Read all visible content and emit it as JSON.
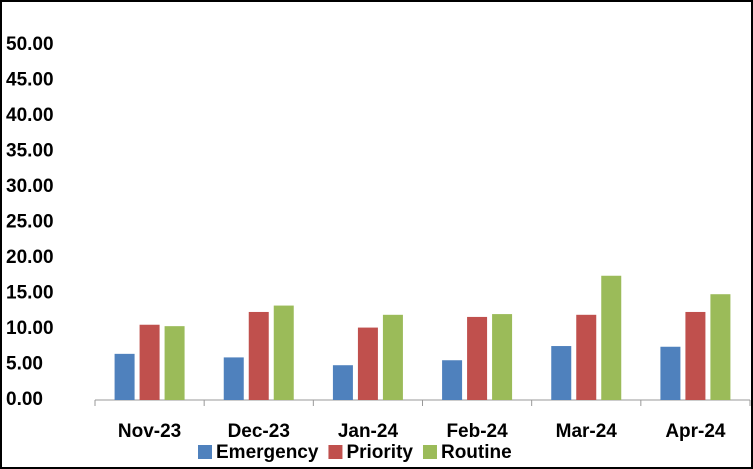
{
  "chart_data": {
    "type": "bar",
    "categories": [
      "Nov-23",
      "Dec-23",
      "Jan-24",
      "Feb-24",
      "Mar-24",
      "Apr-24"
    ],
    "series": [
      {
        "name": "Emergency",
        "color": "#4f81bd",
        "values": [
          6.5,
          6.0,
          4.9,
          5.6,
          7.6,
          7.5
        ]
      },
      {
        "name": "Priority",
        "color": "#c0504d",
        "values": [
          10.6,
          12.4,
          10.2,
          11.7,
          12.0,
          12.4
        ]
      },
      {
        "name": "Routine",
        "color": "#9bbb59",
        "values": [
          10.4,
          13.3,
          12.0,
          12.1,
          17.5,
          14.9
        ]
      }
    ],
    "ylim": [
      0,
      55
    ],
    "yticks": [
      {
        "value": 0,
        "label": "0.00"
      },
      {
        "value": 5,
        "label": "5.00"
      },
      {
        "value": 10,
        "label": "10.00"
      },
      {
        "value": 15,
        "label": "15.00"
      },
      {
        "value": 20,
        "label": "20.00"
      },
      {
        "value": 25,
        "label": "25.00"
      },
      {
        "value": 30,
        "label": "30.00"
      },
      {
        "value": 35,
        "label": "35.00"
      },
      {
        "value": 40,
        "label": "40.00"
      },
      {
        "value": 45,
        "label": "45.00"
      },
      {
        "value": 50,
        "label": "50.00"
      }
    ],
    "legend": "bottom",
    "grid": false
  }
}
